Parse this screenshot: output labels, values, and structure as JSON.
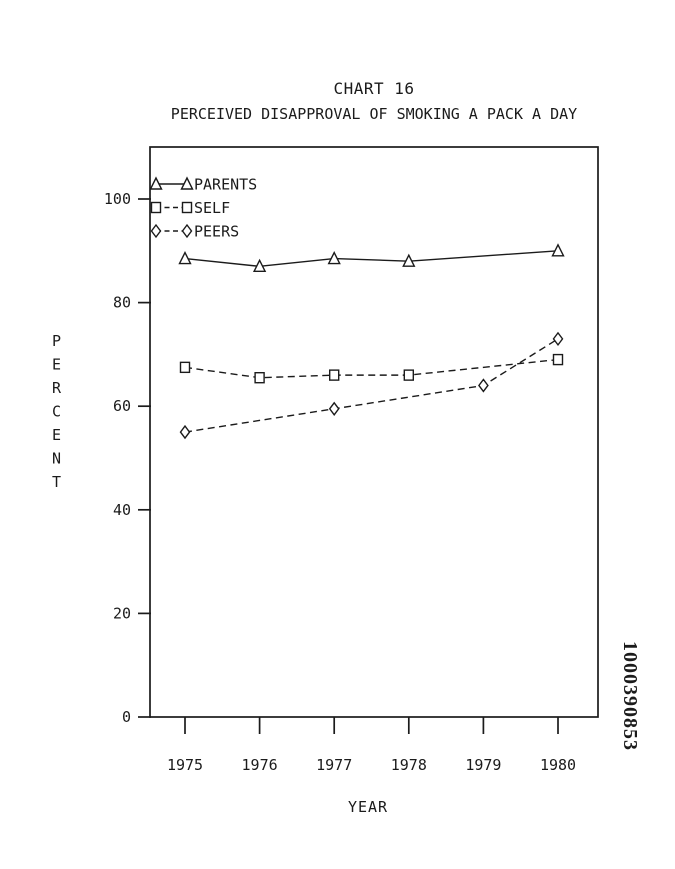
{
  "page": {
    "kind": "scanned patent figure",
    "watermark_number": "1000390853",
    "ink_color": "#1b1b1b",
    "paper_color": "#ffffff"
  },
  "chart_data": {
    "type": "line",
    "title": "CHART 16",
    "subtitle": "PERCEIVED DISAPPROVAL OF SMOKING A PACK A DAY",
    "xlabel": "YEAR",
    "ylabel": "PERCENT",
    "categories": [
      1975,
      1976,
      1977,
      1978,
      1979,
      1980
    ],
    "y_ticks": [
      0,
      20,
      40,
      60,
      80,
      100
    ],
    "ylim": [
      0,
      110
    ],
    "grid": false,
    "legend_position": "top-left-inside",
    "series": [
      {
        "name": "PARENTS",
        "marker": "triangle",
        "line_style": "solid",
        "values": [
          88.5,
          87,
          88.5,
          88,
          null,
          90
        ]
      },
      {
        "name": "SELF",
        "marker": "square",
        "line_style": "dashed",
        "values": [
          67.5,
          65.5,
          66,
          66,
          null,
          69
        ]
      },
      {
        "name": "PEERS",
        "marker": "diamond",
        "line_style": "dashed",
        "values": [
          55,
          null,
          59.5,
          null,
          64,
          73
        ]
      }
    ],
    "colors": {
      "ink": "#1b1b1b",
      "marker_fill": "#ffffff"
    }
  }
}
